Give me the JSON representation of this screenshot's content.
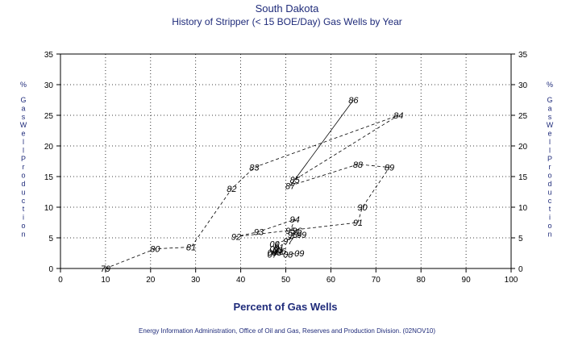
{
  "chart_data": {
    "type": "line",
    "title": "South Dakota",
    "subtitle": "History of Stripper (< 15 BOE/Day) Gas Wells by Year",
    "xlabel": "Percent of Gas Wells",
    "ylabel": "% Gas Well Production",
    "xlim": [
      0,
      100
    ],
    "ylim": [
      0,
      35
    ],
    "xticks": [
      0,
      10,
      20,
      30,
      40,
      50,
      60,
      70,
      80,
      90,
      100
    ],
    "yticks": [
      0,
      5,
      10,
      15,
      20,
      25,
      30,
      35
    ],
    "grid": true,
    "source": "Energy Information Administration, Office of Oil and Gas, Reserves and Production Division. (02NOV10)",
    "points": [
      {
        "label": "79",
        "x": 10,
        "y": 0
      },
      {
        "label": "80",
        "x": 21,
        "y": 3.2
      },
      {
        "label": "81",
        "x": 29,
        "y": 3.5
      },
      {
        "label": "82",
        "x": 38,
        "y": 13
      },
      {
        "label": "83",
        "x": 43,
        "y": 16.5
      },
      {
        "label": "84",
        "x": 75,
        "y": 25
      },
      {
        "label": "85",
        "x": 52,
        "y": 14.5
      },
      {
        "label": "86",
        "x": 65,
        "y": 27.5
      },
      {
        "label": "87",
        "x": 51,
        "y": 13.5
      },
      {
        "label": "88",
        "x": 66,
        "y": 17
      },
      {
        "label": "89",
        "x": 73,
        "y": 16.5
      },
      {
        "label": "90",
        "x": 67,
        "y": 10
      },
      {
        "label": "91",
        "x": 66,
        "y": 7.5
      },
      {
        "label": "92",
        "x": 39,
        "y": 5.2
      },
      {
        "label": "93",
        "x": 44,
        "y": 6
      },
      {
        "label": "94",
        "x": 52,
        "y": 8
      },
      {
        "label": "95",
        "x": 51,
        "y": 6.2
      },
      {
        "label": "96",
        "x": 52.5,
        "y": 6.2
      },
      {
        "label": "97",
        "x": 50.5,
        "y": 4.5
      },
      {
        "label": "98",
        "x": 51.5,
        "y": 5.5
      },
      {
        "label": "99",
        "x": 53.5,
        "y": 5.5
      },
      {
        "label": "00",
        "x": 47.5,
        "y": 4
      },
      {
        "label": "01",
        "x": 48.5,
        "y": 3.5
      },
      {
        "label": "02",
        "x": 47.5,
        "y": 3.2
      },
      {
        "label": "03",
        "x": 48.2,
        "y": 3
      },
      {
        "label": "04",
        "x": 47,
        "y": 2.6
      },
      {
        "label": "05",
        "x": 48,
        "y": 2.6
      },
      {
        "label": "06",
        "x": 49,
        "y": 2.8
      },
      {
        "label": "07",
        "x": 47,
        "y": 2.3
      },
      {
        "label": "08",
        "x": 50.5,
        "y": 2.3
      },
      {
        "label": "09",
        "x": 53,
        "y": 2.5
      }
    ]
  }
}
